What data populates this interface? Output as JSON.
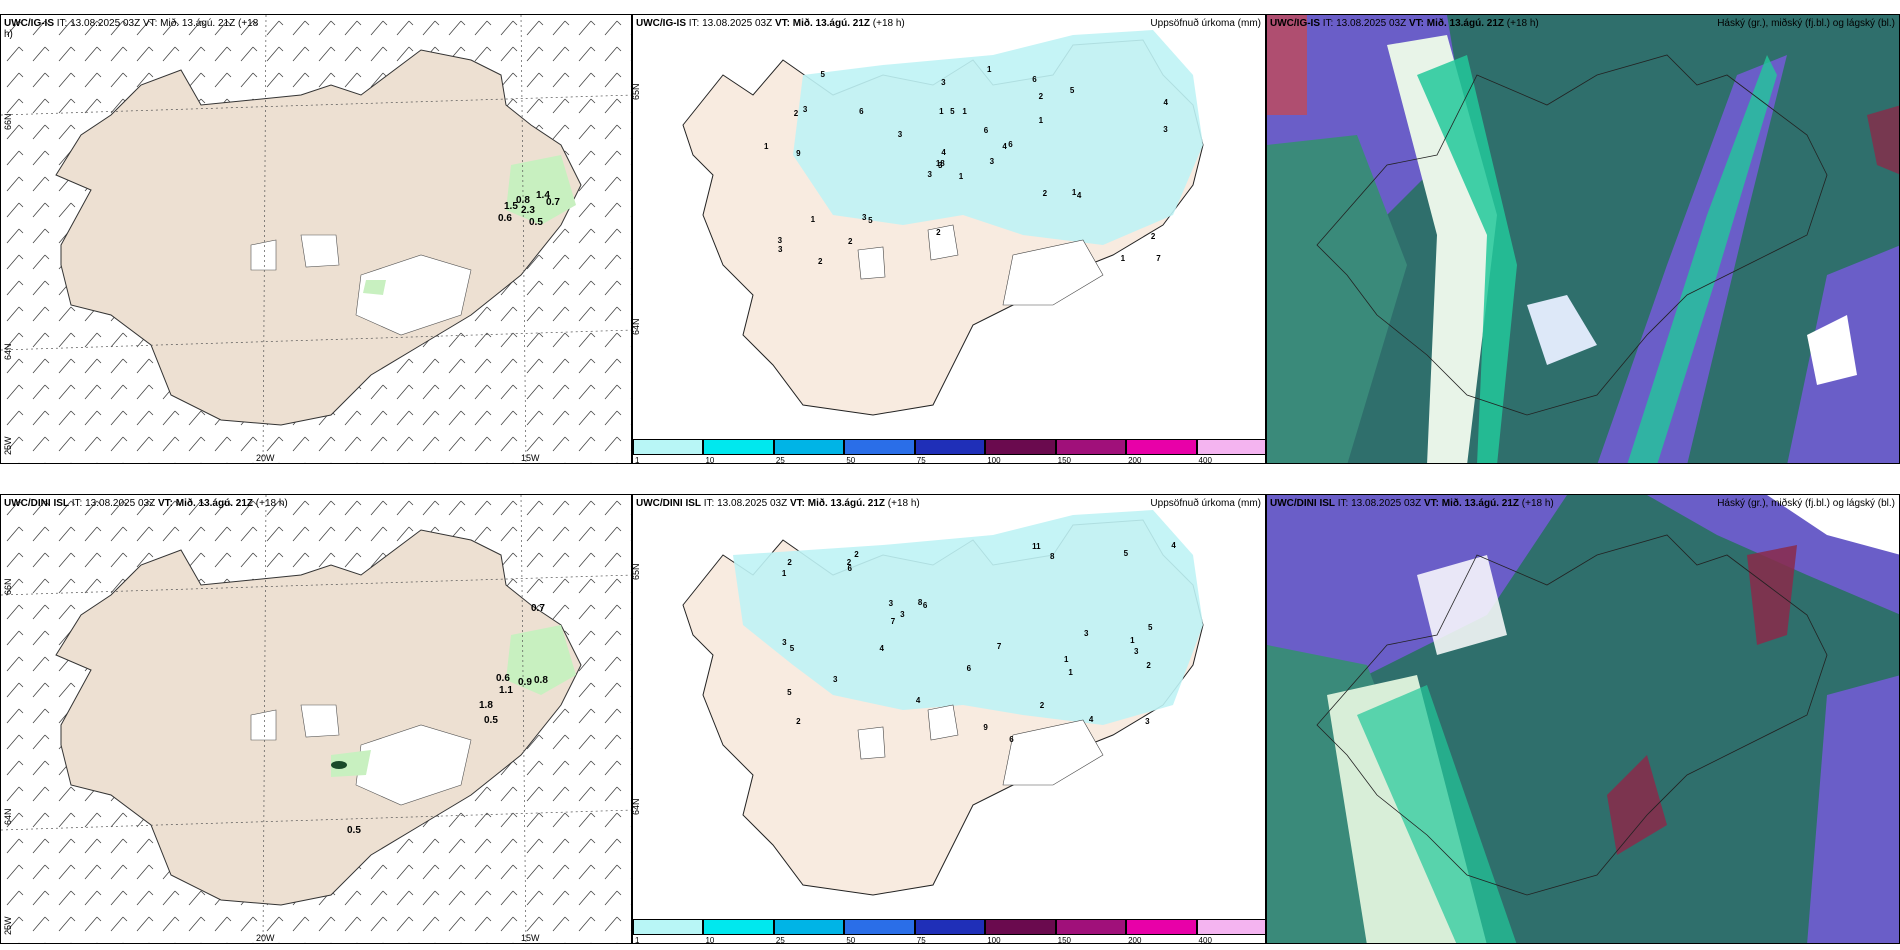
{
  "row1": {
    "wind_panel": {
      "header_model": "UWC/IG-IS",
      "header_rest": "IT: 13.08.2025 03Z VT: Mið. 13.ágú. 21Z (+18",
      "header_rest2": "h)",
      "lat_labels": [
        "66N",
        "64N",
        "25W"
      ],
      "lon_labels": [
        "20W",
        "15W"
      ],
      "values": [
        "0.6",
        "0.5",
        "1.5",
        "0.8",
        "2.3",
        "0.7",
        "1.4"
      ]
    },
    "precip_panel": {
      "header_model": "UWC/IG-IS",
      "header_it": "IT: 13.08.2025 03Z",
      "header_vt": "VT: Mið. 13.ágú. 21Z",
      "header_lead": "(+18 h)",
      "title": "Uppsöfnuð úrkoma (mm)",
      "lat_labels": [
        "65N",
        "64N"
      ],
      "values": [
        "1",
        "2",
        "3",
        "3",
        "4",
        "5",
        "6",
        "1",
        "2",
        "3",
        "5",
        "7",
        "9",
        "4",
        "3",
        "1",
        "2",
        "1",
        "6",
        "1",
        "3",
        "3",
        "2",
        "5",
        "6",
        "4",
        "3",
        "3",
        "1",
        "2",
        "3",
        "18",
        "2",
        "4",
        "6",
        "5",
        "3",
        "1",
        "2",
        "1",
        "1"
      ]
    },
    "cloud_panel": {
      "header_model": "UWC/IG-IS",
      "header_it": "IT: 13.08.2025 03Z",
      "header_vt": "VT: Mið. 13.ágú. 21Z",
      "header_lead": "(+18 h)",
      "title": "Háský (gr.), miðský (fj.bl.) og lágský (bl.)"
    }
  },
  "row2": {
    "wind_panel": {
      "header_model": "UWC/DINI ISL",
      "header_it": "IT: 13.08.2025 03Z",
      "header_vt": "VT: Mið. 13.ágú. 21Z",
      "header_lead": "(+18 h)",
      "lat_labels": [
        "66N",
        "64N",
        "25W"
      ],
      "lon_labels": [
        "20W",
        "15W"
      ],
      "values": [
        "0.7",
        "0.6",
        "1.1",
        "0.9",
        "0.8",
        "1.8",
        "0.5",
        "0.5"
      ]
    },
    "precip_panel": {
      "header_model": "UWC/DINI ISL",
      "header_it": "IT: 13.08.2025 03Z",
      "header_vt": "VT: Mið. 13.ágú. 21Z",
      "header_lead": "(+18 h)",
      "title": "Uppsöfnuð úrkoma (mm)",
      "lat_labels": [
        "65N",
        "64N"
      ],
      "values": [
        "1",
        "3",
        "2",
        "2",
        "6",
        "4",
        "5",
        "8",
        "3",
        "6",
        "1",
        "3",
        "2",
        "3",
        "4",
        "5",
        "6",
        "7",
        "8",
        "3",
        "4",
        "5",
        "7",
        "2",
        "11",
        "2",
        "1",
        "5",
        "6",
        "3",
        "9",
        "2",
        "3",
        "4",
        "1"
      ]
    },
    "cloud_panel": {
      "header_model": "UWC/DINI ISL",
      "header_it": "IT: 13.08.2025 03Z",
      "header_vt": "VT: Mið. 13.ágú. 21Z",
      "header_lead": "(+18 h)",
      "title": "Háský (gr.), miðský (fj.bl.) og lágský (bl.)"
    }
  },
  "precip_legend": {
    "ticks": [
      "1",
      "10",
      "25",
      "50",
      "75",
      "100",
      "150",
      "200",
      "400"
    ],
    "colors": [
      "#b8f6f6",
      "#00e8ee",
      "#00b4e6",
      "#2a6ee8",
      "#1f2fb8",
      "#6a0a4e",
      "#a0107a",
      "#e800a8",
      "#f4b4f0"
    ]
  },
  "colors": {
    "land": "#ede0d2",
    "glacier": "#ffffff",
    "precip_light": "#bff3f5",
    "wind_green": "#c8f0c0",
    "cloud_dark": "#2f6f6c",
    "cloud_mid": "#6a5ec8",
    "cloud_low": "#22c89a"
  }
}
